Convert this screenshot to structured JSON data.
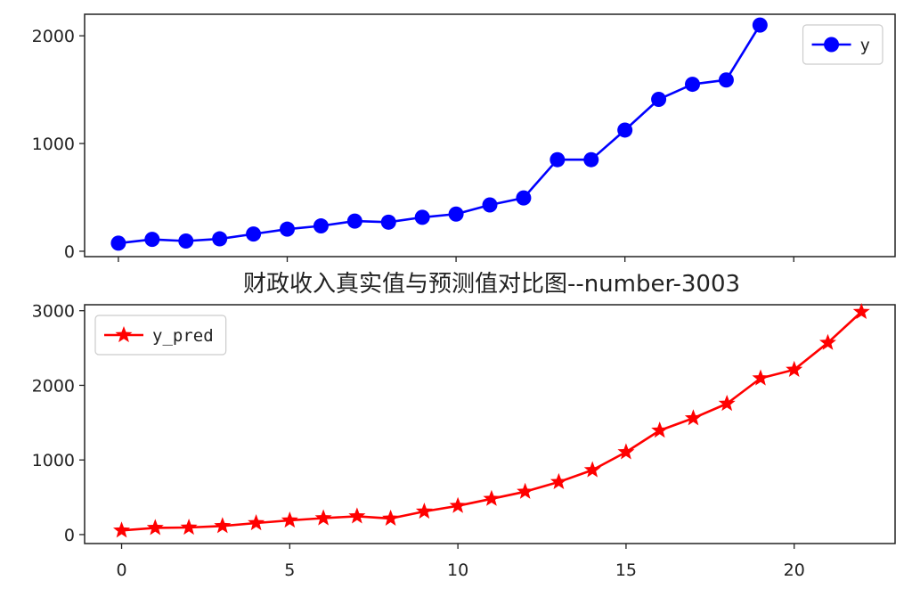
{
  "chart_data": [
    {
      "type": "line",
      "series": [
        {
          "name": "y",
          "color": "#0000ff",
          "marker": "circle",
          "x": [
            0,
            1,
            2,
            3,
            4,
            5,
            6,
            7,
            8,
            9,
            10,
            11,
            12,
            13,
            14,
            15,
            16,
            17,
            18,
            19
          ],
          "values": [
            75,
            110,
            95,
            115,
            160,
            205,
            235,
            280,
            270,
            315,
            345,
            430,
            495,
            850,
            850,
            1125,
            1410,
            1550,
            1590,
            2100
          ]
        }
      ],
      "xlim": [
        -1,
        23
      ],
      "ylim": [
        -50,
        2200
      ],
      "yticks": [
        0,
        1000,
        2000
      ],
      "xticks": [
        0,
        5,
        10,
        15,
        20
      ],
      "xtick_labels_visible": false,
      "legend": "top-right",
      "title": ""
    },
    {
      "type": "line",
      "title": "财政收入真实值与预测值对比图--number-3003",
      "series": [
        {
          "name": "y_pred",
          "color": "#ff0000",
          "marker": "star",
          "x": [
            0,
            1,
            2,
            3,
            4,
            5,
            6,
            7,
            8,
            9,
            10,
            11,
            12,
            13,
            14,
            15,
            16,
            17,
            18,
            19,
            20,
            21,
            22
          ],
          "values": [
            55,
            90,
            95,
            115,
            155,
            190,
            220,
            245,
            215,
            310,
            385,
            480,
            575,
            705,
            865,
            1105,
            1395,
            1560,
            1755,
            2095,
            2210,
            2570,
            2985
          ]
        }
      ],
      "xlim": [
        -1.1,
        23
      ],
      "ylim": [
        -120,
        3080
      ],
      "yticks": [
        0,
        1000,
        2000,
        3000
      ],
      "xticks": [
        0,
        5,
        10,
        15,
        20
      ],
      "legend": "top-left"
    }
  ]
}
